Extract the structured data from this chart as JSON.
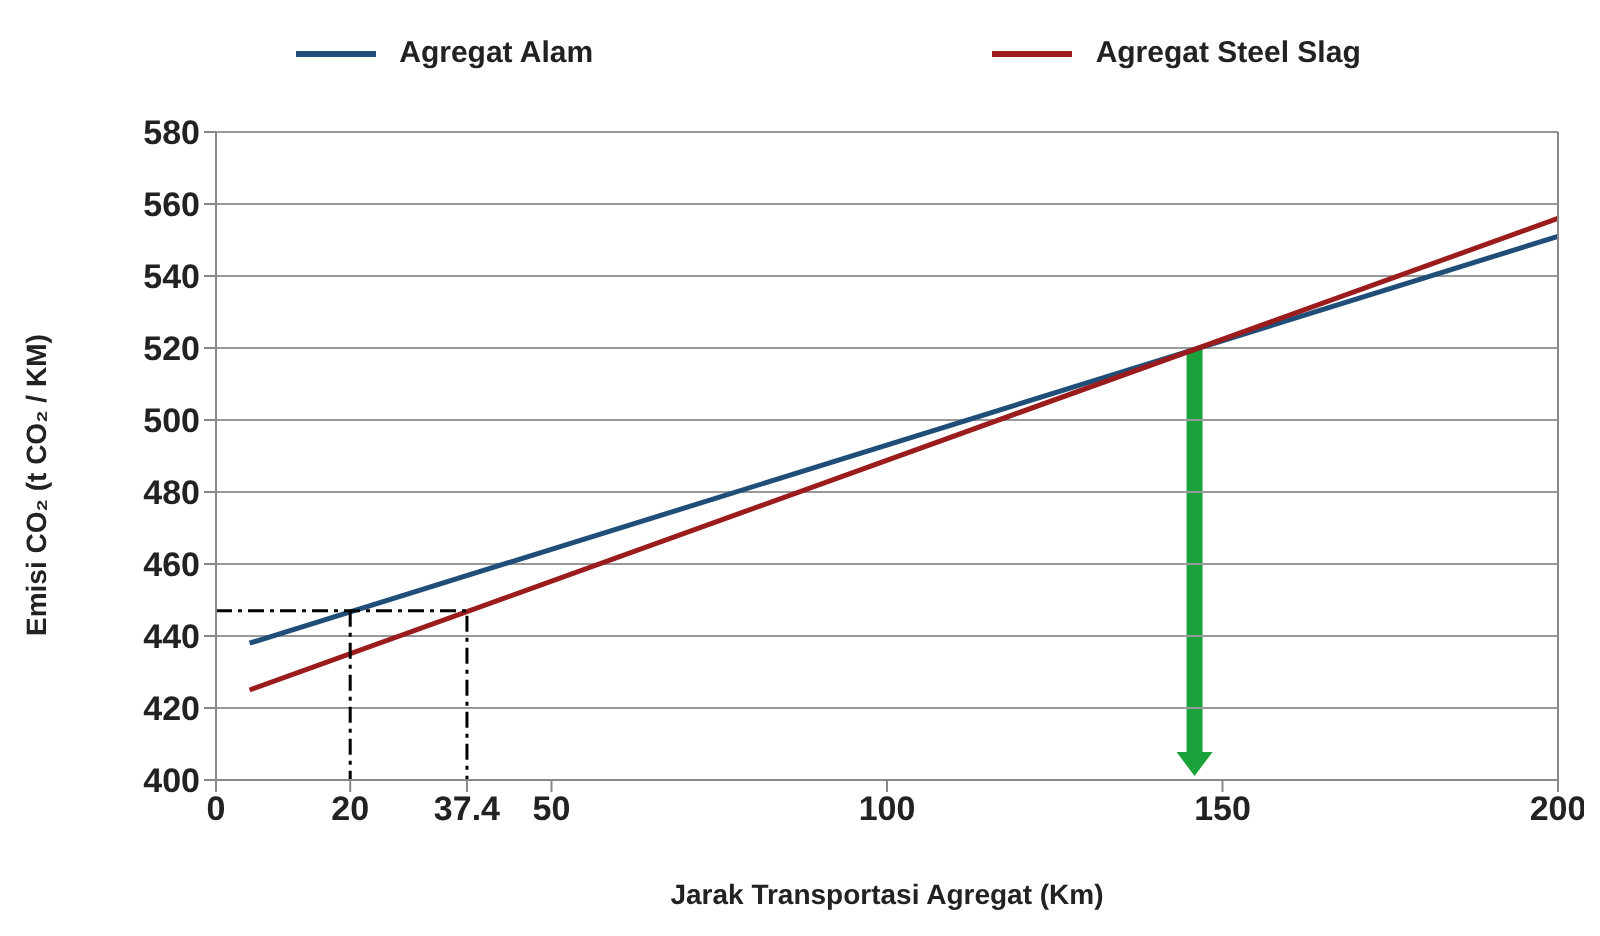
{
  "chart_data": {
    "type": "line",
    "xlabel": "Jarak Transportasi Agregat (Km)",
    "ylabel": "Emisi CO₂ (t CO₂ / KM)",
    "xlim": [
      0,
      200
    ],
    "xticks": [
      0,
      20,
      37.4,
      50,
      100,
      150,
      200
    ],
    "ylim": [
      400,
      580
    ],
    "yticks": [
      400,
      420,
      440,
      460,
      480,
      500,
      520,
      540,
      560,
      580
    ],
    "grid": "y",
    "legend": "top",
    "marker": "none",
    "series": [
      {
        "name": "Agregat Alam",
        "color": "#1f4e79",
        "x": [
          5,
          200
        ],
        "values": [
          438,
          551
        ],
        "line_style": "solid"
      },
      {
        "name": "Agregat Steel Slag",
        "color": "#9b1c1c",
        "x": [
          5,
          200
        ],
        "values": [
          425,
          556
        ],
        "line_style": "solid"
      },
      {
        "color": "#000000",
        "x": [
          0,
          37.4,
          37.4
        ],
        "values": [
          447,
          447,
          400
        ],
        "line_style": "dashed"
      },
      {
        "color": "#000000",
        "x": [
          20,
          20
        ],
        "values": [
          447,
          400
        ],
        "line_style": "dashed"
      }
    ]
  }
}
